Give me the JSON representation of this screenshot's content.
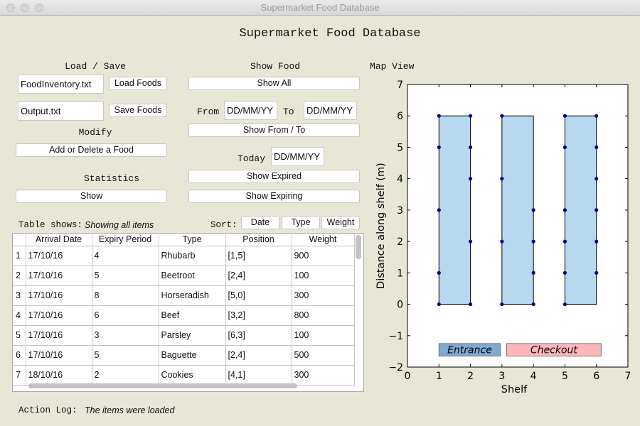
{
  "window": {
    "title": "Supermarket Food Database"
  },
  "app": {
    "heading": "Supermarket Food Database"
  },
  "load_save": {
    "heading": "Load / Save",
    "load_file": "FoodInventory.txt",
    "load_button": "Load Foods",
    "save_file": "Output.txt",
    "save_button": "Save Foods"
  },
  "modify": {
    "heading": "Modify",
    "button": "Add or Delete a Food"
  },
  "statistics": {
    "heading": "Statistics",
    "button": "Show"
  },
  "show_food": {
    "heading": "Show Food",
    "show_all": "Show All",
    "from_label": "From",
    "from_value": "DD/MM/YY",
    "to_label": "To",
    "to_value": "DD/MM/YY",
    "show_from_to": "Show From / To",
    "today_label": "Today",
    "today_value": "DD/MM/YY",
    "show_expired": "Show Expired",
    "show_expiring": "Show Expiring"
  },
  "table_status": {
    "label": "Table shows:",
    "value": "Showing all items"
  },
  "sort": {
    "label": "Sort:",
    "buttons": [
      "Date",
      "Type",
      "Weight"
    ]
  },
  "table": {
    "columns": [
      "Arrival Date",
      "Expiry Period",
      "Type",
      "Position",
      "Weight"
    ],
    "rows": [
      {
        "n": "1",
        "arrival": "17/10/16",
        "expiry": "4",
        "type": "Rhubarb",
        "position": "[1,5]",
        "weight": "900"
      },
      {
        "n": "2",
        "arrival": "17/10/16",
        "expiry": "5",
        "type": "Beetroot",
        "position": "[2,4]",
        "weight": "100"
      },
      {
        "n": "3",
        "arrival": "17/10/16",
        "expiry": "8",
        "type": "Horseradish",
        "position": "[5,0]",
        "weight": "300"
      },
      {
        "n": "4",
        "arrival": "17/10/16",
        "expiry": "6",
        "type": "Beef",
        "position": "[3,2]",
        "weight": "800"
      },
      {
        "n": "5",
        "arrival": "17/10/16",
        "expiry": "3",
        "type": "Parsley",
        "position": "[6,3]",
        "weight": "100"
      },
      {
        "n": "6",
        "arrival": "17/10/16",
        "expiry": "5",
        "type": "Baguette",
        "position": "[2,4]",
        "weight": "500"
      },
      {
        "n": "7",
        "arrival": "18/10/16",
        "expiry": "2",
        "type": "Cookies",
        "position": "[4,1]",
        "weight": "300"
      }
    ]
  },
  "action_log": {
    "label": "Action Log:",
    "value": "The items were loaded"
  },
  "map": {
    "heading": "Map View",
    "xlabel": "Shelf",
    "ylabel": "Distance along shelf (m)",
    "x_ticks": [
      "0",
      "1",
      "2",
      "3",
      "4",
      "5",
      "6",
      "7"
    ],
    "y_ticks": [
      "7",
      "6",
      "5",
      "4",
      "3",
      "2",
      "1",
      "0",
      "−1",
      "−2"
    ],
    "entrance_label": "Entrance",
    "checkout_label": "Checkout",
    "colors": {
      "shelf": "#b8d8ef",
      "entrance": "#7fa9d3",
      "checkout": "#ffb6b9",
      "point": "#00008b"
    }
  },
  "chart_data": {
    "type": "scatter",
    "xlabel": "Shelf",
    "ylabel": "Distance along shelf (m)",
    "xlim": [
      0,
      7
    ],
    "ylim": [
      -2,
      7
    ],
    "x_ticks": [
      0,
      1,
      2,
      3,
      4,
      5,
      6,
      7
    ],
    "y_ticks": [
      -2,
      -1,
      0,
      1,
      2,
      3,
      4,
      5,
      6,
      7
    ],
    "shelves": [
      {
        "x0": 1,
        "x1": 2,
        "y0": 0,
        "y1": 6
      },
      {
        "x0": 3,
        "x1": 4,
        "y0": 0,
        "y1": 6
      },
      {
        "x0": 5,
        "x1": 6,
        "y0": 0,
        "y1": 6
      }
    ],
    "zones": [
      {
        "label": "Entrance",
        "x0": 1,
        "x1": 2.95,
        "y0": -1.65,
        "y1": -1.25
      },
      {
        "label": "Checkout",
        "x0": 3.15,
        "x1": 6.15,
        "y0": -1.65,
        "y1": -1.25
      }
    ],
    "points": [
      [
        1,
        6
      ],
      [
        2,
        6
      ],
      [
        1,
        5
      ],
      [
        2,
        5
      ],
      [
        2,
        4
      ],
      [
        1,
        3
      ],
      [
        2,
        2
      ],
      [
        1,
        1
      ],
      [
        1,
        0
      ],
      [
        2,
        0
      ],
      [
        3,
        6
      ],
      [
        3,
        4
      ],
      [
        4,
        3
      ],
      [
        3,
        2
      ],
      [
        4,
        2
      ],
      [
        4,
        1
      ],
      [
        3,
        0
      ],
      [
        4,
        0
      ],
      [
        5,
        6
      ],
      [
        6,
        6
      ],
      [
        5,
        5
      ],
      [
        6,
        5
      ],
      [
        6,
        4
      ],
      [
        5,
        3
      ],
      [
        6,
        3
      ],
      [
        5,
        2
      ],
      [
        6,
        2
      ],
      [
        5,
        1
      ],
      [
        6,
        1
      ],
      [
        5,
        0
      ]
    ]
  }
}
